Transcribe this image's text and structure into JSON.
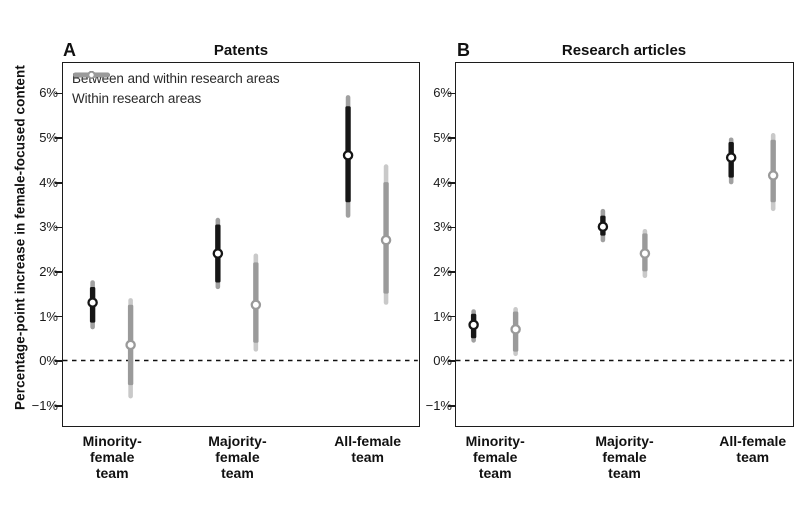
{
  "figure": {
    "y_axis_title": "Percentage-point increase in female-focused content",
    "y_tick_labels": [
      "6%",
      "5%",
      "4%",
      "3%",
      "2%",
      "1%",
      "0%",
      "−1%"
    ],
    "category_labels": [
      "Minority-\nfemale\nteam",
      "Majority-\nfemale\nteam",
      "All-female\nteam"
    ],
    "legend": [
      {
        "label": "Between and within research areas",
        "color": "#161616"
      },
      {
        "label": "Within research areas",
        "color": "#9a9a9a"
      }
    ],
    "colors": {
      "axis": "#1c1c1c",
      "zero_line": "#111111",
      "black_series": "#161616",
      "black_series_outer": "#a0a0a0",
      "gray_series": "#9a9a9a",
      "gray_series_outer": "#c9c9c9",
      "marker_fill": "#ffffff"
    }
  },
  "chart_data": [
    {
      "type": "scatter",
      "panel_label": "A",
      "title": "Patents",
      "categories": [
        "Minority-female team",
        "Majority-female team",
        "All-female team"
      ],
      "ylabel": "Percentage-point increase in female-focused content",
      "ylim": [
        -1.44,
        6.67
      ],
      "yticks": [
        6,
        5,
        4,
        3,
        2,
        1,
        0,
        -1
      ],
      "ytick_labels": [
        "6%",
        "5%",
        "4%",
        "3%",
        "2%",
        "1%",
        "0%",
        "−1%"
      ],
      "zero_line": "dashed",
      "grid": false,
      "legend_position": "top-left-inside",
      "series": [
        {
          "name": "Between and within research areas",
          "points": [
            1.3,
            2.4,
            4.6
          ],
          "ci_inner": [
            [
              0.85,
              1.65
            ],
            [
              1.75,
              3.05
            ],
            [
              3.55,
              5.7
            ]
          ],
          "ci_outer": [
            [
              0.7,
              1.8
            ],
            [
              1.6,
              3.2
            ],
            [
              3.2,
              5.95
            ]
          ]
        },
        {
          "name": "Within research areas",
          "points": [
            0.35,
            1.25,
            2.7
          ],
          "ci_inner": [
            [
              -0.55,
              1.25
            ],
            [
              0.4,
              2.2
            ],
            [
              1.5,
              4.0
            ]
          ],
          "ci_outer": [
            [
              -0.85,
              1.4
            ],
            [
              0.2,
              2.4
            ],
            [
              1.25,
              4.4
            ]
          ]
        }
      ]
    },
    {
      "type": "scatter",
      "panel_label": "B",
      "title": "Research articles",
      "categories": [
        "Minority-female team",
        "Majority-female team",
        "All-female team"
      ],
      "ylabel": "Percentage-point increase in female-focused content",
      "ylim": [
        -1.44,
        6.67
      ],
      "yticks": [
        6,
        5,
        4,
        3,
        2,
        1,
        0,
        -1
      ],
      "ytick_labels": [
        "6%",
        "5%",
        "4%",
        "3%",
        "2%",
        "1%",
        "0%",
        "−1%"
      ],
      "zero_line": "dashed",
      "grid": false,
      "legend_position": "none",
      "series": [
        {
          "name": "Between and within research areas",
          "points": [
            0.8,
            3.0,
            4.55
          ],
          "ci_inner": [
            [
              0.5,
              1.05
            ],
            [
              2.8,
              3.25
            ],
            [
              4.1,
              4.9
            ]
          ],
          "ci_outer": [
            [
              0.4,
              1.15
            ],
            [
              2.65,
              3.4
            ],
            [
              3.95,
              5.0
            ]
          ]
        },
        {
          "name": "Within research areas",
          "points": [
            0.7,
            2.4,
            4.15
          ],
          "ci_inner": [
            [
              0.2,
              1.1
            ],
            [
              2.0,
              2.85
            ],
            [
              3.55,
              4.95
            ]
          ],
          "ci_outer": [
            [
              0.1,
              1.2
            ],
            [
              1.85,
              2.95
            ],
            [
              3.35,
              5.1
            ]
          ]
        }
      ]
    }
  ]
}
